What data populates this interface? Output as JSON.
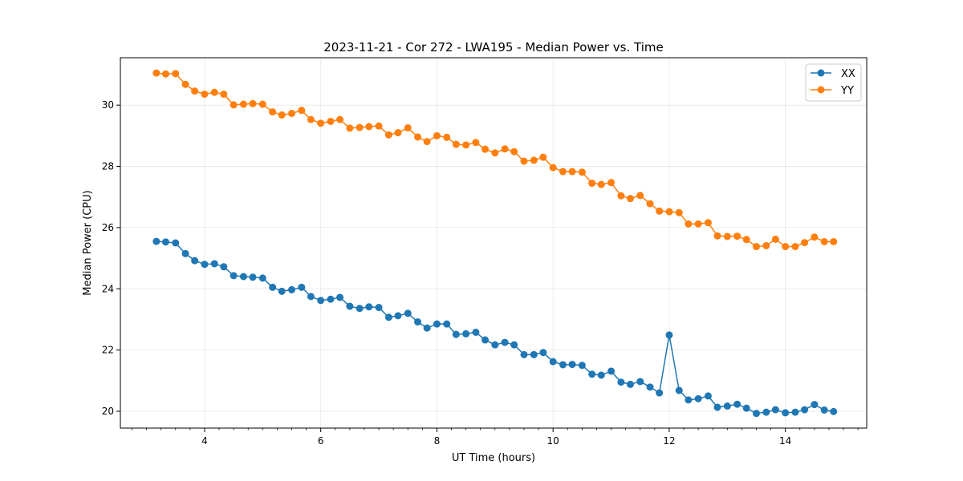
{
  "chart_data": {
    "type": "line",
    "title": "2023-11-21 - Cor 272 - LWA195 - Median Power vs. Time",
    "xlabel": "UT Time (hours)",
    "ylabel": "Median Power (CPU)",
    "xlim": [
      2.55,
      15.4
    ],
    "ylim": [
      19.45,
      31.55
    ],
    "xticks": [
      4,
      6,
      8,
      10,
      12,
      14
    ],
    "xtick_labels": [
      "4",
      "6",
      "8",
      "10",
      "12",
      "14"
    ],
    "yticks": [
      20,
      22,
      24,
      26,
      28,
      30
    ],
    "ytick_labels": [
      "20",
      "22",
      "24",
      "26",
      "28",
      "30"
    ],
    "grid": true,
    "legend_position": "top-right",
    "x": [
      3.17,
      3.33,
      3.5,
      3.67,
      3.83,
      4.0,
      4.17,
      4.33,
      4.5,
      4.67,
      4.83,
      5.0,
      5.17,
      5.33,
      5.5,
      5.67,
      5.83,
      6.0,
      6.17,
      6.33,
      6.5,
      6.67,
      6.83,
      7.0,
      7.17,
      7.33,
      7.5,
      7.67,
      7.83,
      8.0,
      8.17,
      8.33,
      8.5,
      8.67,
      8.83,
      9.0,
      9.17,
      9.33,
      9.5,
      9.67,
      9.83,
      10.0,
      10.17,
      10.33,
      10.5,
      10.67,
      10.83,
      11.0,
      11.17,
      11.33,
      11.5,
      11.67,
      11.83,
      12.0,
      12.17,
      12.33,
      12.5,
      12.67,
      12.83,
      13.0,
      13.17,
      13.33,
      13.5,
      13.67,
      13.83,
      14.0,
      14.17,
      14.33,
      14.5,
      14.67,
      14.83
    ],
    "series": [
      {
        "name": "XX",
        "color": "#1f77b4",
        "values": [
          25.55,
          25.53,
          25.5,
          25.15,
          24.92,
          24.8,
          24.82,
          24.72,
          24.43,
          24.4,
          24.38,
          24.35,
          24.05,
          23.92,
          23.97,
          24.05,
          23.75,
          23.62,
          23.66,
          23.72,
          23.43,
          23.36,
          23.41,
          23.39,
          23.07,
          23.12,
          23.2,
          22.92,
          22.72,
          22.85,
          22.85,
          22.51,
          22.53,
          22.58,
          22.33,
          22.17,
          22.25,
          22.17,
          21.85,
          21.85,
          21.92,
          21.62,
          21.52,
          21.53,
          21.5,
          21.21,
          21.18,
          21.31,
          20.95,
          20.88,
          20.97,
          20.79,
          20.6,
          22.49,
          20.68,
          20.37,
          20.41,
          20.5,
          20.13,
          20.17,
          20.23,
          20.1,
          19.93,
          19.97,
          20.05,
          19.95,
          19.97,
          20.05,
          20.22,
          20.04,
          19.99
        ]
      },
      {
        "name": "YY",
        "color": "#ff7f0e",
        "values": [
          31.05,
          31.02,
          31.03,
          30.68,
          30.46,
          30.36,
          30.42,
          30.36,
          30.01,
          30.03,
          30.05,
          30.03,
          29.78,
          29.68,
          29.73,
          29.83,
          29.53,
          29.41,
          29.47,
          29.53,
          29.25,
          29.27,
          29.3,
          29.32,
          29.03,
          29.1,
          29.26,
          28.96,
          28.81,
          29.0,
          28.95,
          28.72,
          28.7,
          28.78,
          28.56,
          28.44,
          28.57,
          28.48,
          28.17,
          28.2,
          28.3,
          27.96,
          27.83,
          27.83,
          27.81,
          27.45,
          27.41,
          27.47,
          27.04,
          26.95,
          27.05,
          26.78,
          26.54,
          26.52,
          26.49,
          26.12,
          26.12,
          26.16,
          25.73,
          25.71,
          25.72,
          25.61,
          25.38,
          25.41,
          25.62,
          25.38,
          25.38,
          25.51,
          25.69,
          25.54,
          25.54
        ]
      }
    ]
  }
}
